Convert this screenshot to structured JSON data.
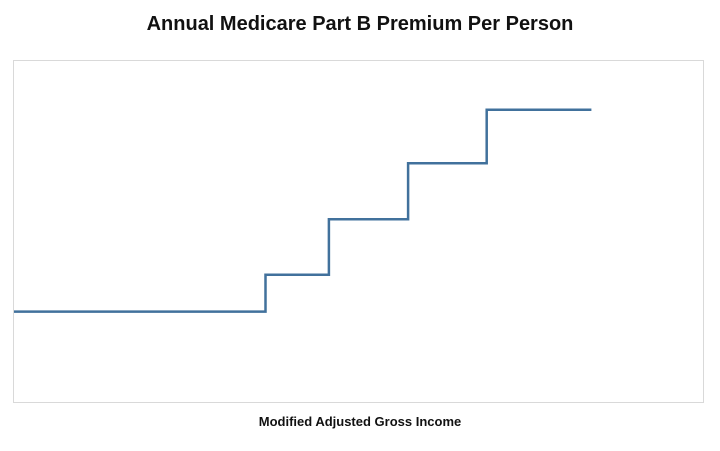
{
  "page": {
    "background_color": "#ffffff"
  },
  "chart_data": {
    "type": "line",
    "subtype": "step",
    "title": "Annual Medicare Part B Premium Per Person",
    "xlabel": "Modified Adjusted Gross Income",
    "ylabel": "",
    "grid": false,
    "legend": false,
    "x_axis": {
      "tick_labels": [],
      "range_normalized": [
        0,
        1
      ]
    },
    "y_axis": {
      "tick_labels": [],
      "range_normalized": [
        0,
        1
      ]
    },
    "line_color": "#41719C",
    "line_width": 2.5,
    "plot_border_color": "#d9d9d9",
    "steps_normalized": [
      {
        "x_start": 0.0,
        "x_end": 0.365,
        "level": 0.265
      },
      {
        "x_start": 0.365,
        "x_end": 0.457,
        "level": 0.373
      },
      {
        "x_start": 0.457,
        "x_end": 0.572,
        "level": 0.536
      },
      {
        "x_start": 0.572,
        "x_end": 0.686,
        "level": 0.7
      },
      {
        "x_start": 0.686,
        "x_end": 0.838,
        "level": 0.857
      }
    ],
    "notes_visible_on_screen": ""
  }
}
